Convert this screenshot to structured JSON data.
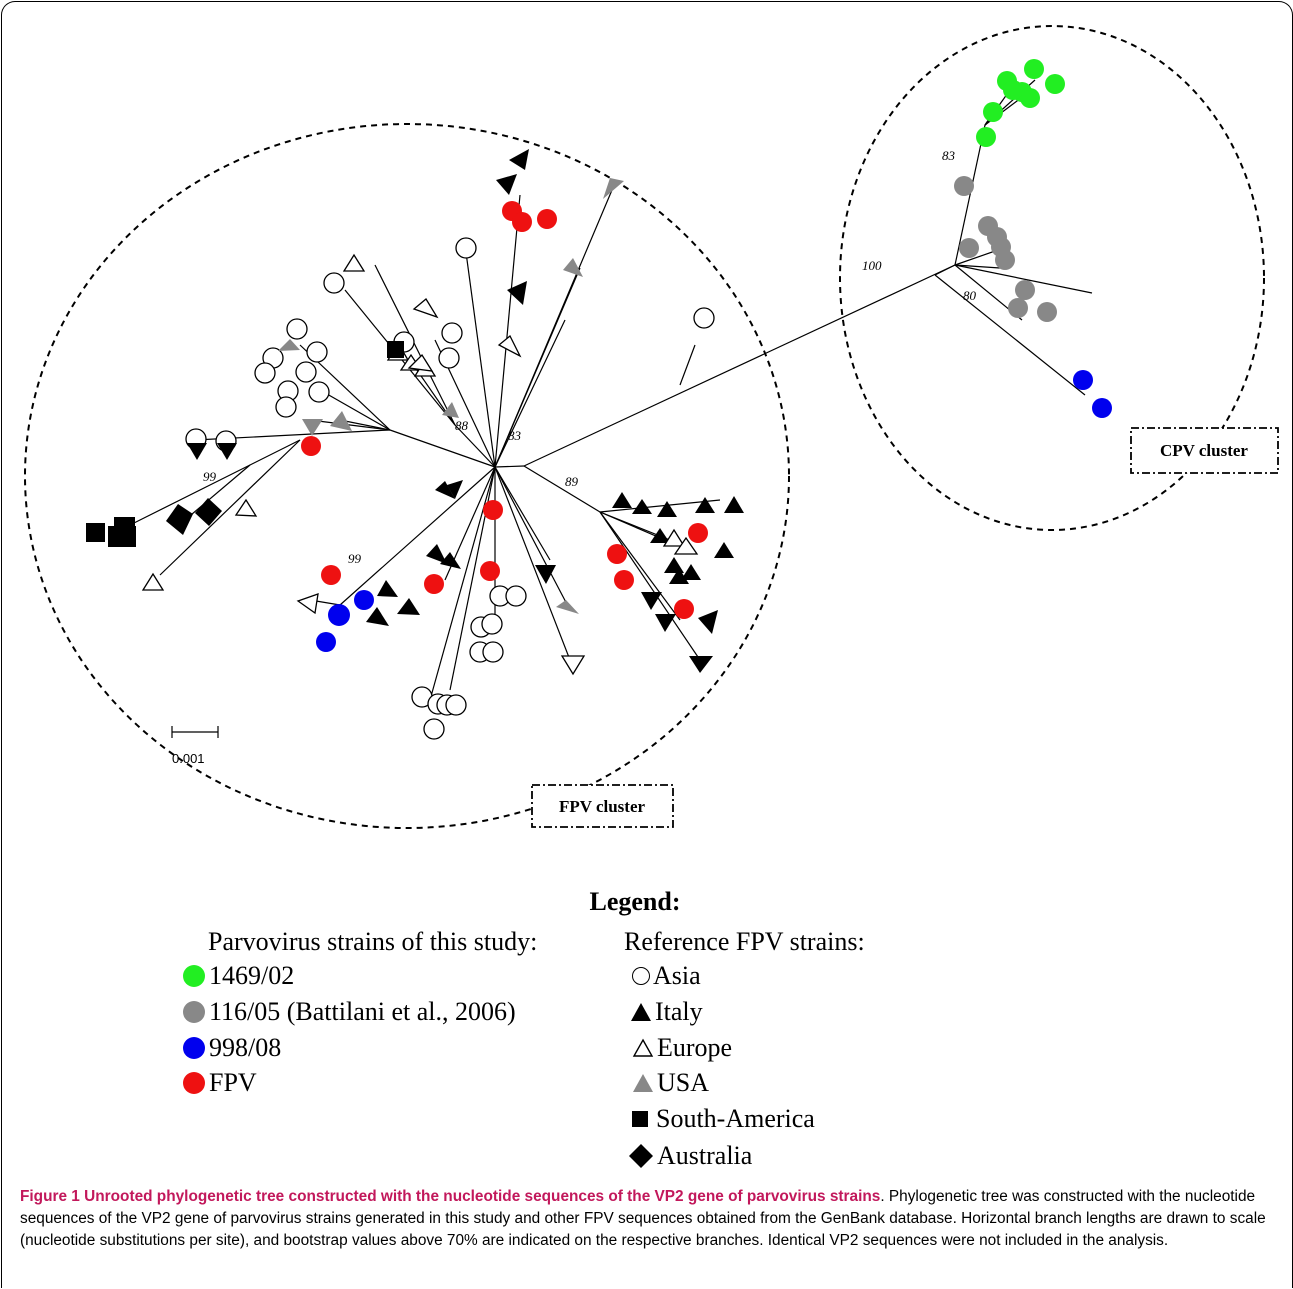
{
  "figure": {
    "scale_bar_label": "0.001",
    "cluster_labels": {
      "fpv": "FPV cluster",
      "cpv": "CPV cluster"
    },
    "bootstrap_values": [
      "83",
      "100",
      "80",
      "88",
      "83",
      "99",
      "89",
      "99"
    ]
  },
  "legend": {
    "title": "Legend:",
    "study_heading": "Parvovirus strains of this study:",
    "reference_heading": "Reference FPV strains:",
    "study_items": [
      {
        "label": "1469/02",
        "color": "#22ee22",
        "symbol": "circle"
      },
      {
        "label": "116/05 (Battilani et al., 2006)",
        "color": "#888888",
        "symbol": "circle"
      },
      {
        "label": "998/08",
        "color": "#0000ee",
        "symbol": "circle"
      },
      {
        "label": "FPV",
        "color": "#ee1111",
        "symbol": "circle"
      }
    ],
    "reference_items": [
      {
        "label": "Asia",
        "symbol": "circle-open"
      },
      {
        "label": "Italy",
        "symbol": "triangle-black"
      },
      {
        "label": "Europe",
        "symbol": "triangle-open"
      },
      {
        "label": "USA",
        "symbol": "triangle-grey"
      },
      {
        "label": "South-America",
        "symbol": "square-black"
      },
      {
        "label": "Australia",
        "symbol": "diamond-black"
      }
    ]
  },
  "caption": {
    "title": "Figure 1 Unrooted phylogenetic tree constructed with the nucleotide sequences of the VP2 gene of parvovirus strains",
    "body": ". Phylogenetic tree was constructed with the nucleotide sequences of the VP2 gene of parvovirus strains generated in this study and other FPV sequences obtained from the GenBank database. Horizontal branch lengths are drawn to scale (nucleotide substitutions per site), and bootstrap values above 70% are indicated on the respective branches. Identical VP2 sequences were not included in the analysis."
  }
}
